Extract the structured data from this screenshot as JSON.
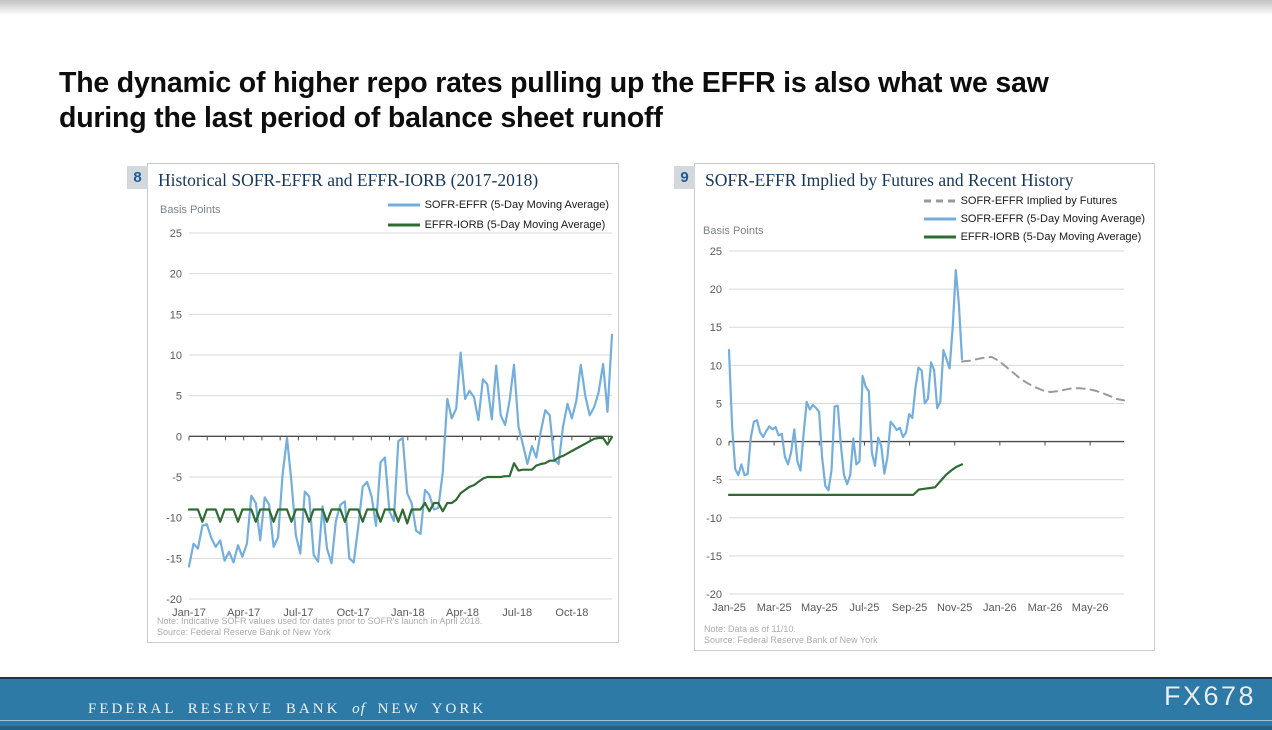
{
  "slide": {
    "title_lines": [
      "The dynamic of higher repo rates pulling up the EFFR is also what we saw",
      "during the last period of balance sheet runoff"
    ]
  },
  "watermark": "FX678",
  "footer": {
    "bank_pre": "FEDERAL RESERVE BANK",
    "bank_of": "of",
    "bank_post": "NEW YORK"
  },
  "ui": {
    "badge_bg": "#d3d8dc",
    "badge_fg": "#1f5c9e",
    "footer_bar": "#2e7aa7",
    "footer_line": "#15355c",
    "gridline": "#d9d9d9",
    "zero_line": "#4d4d4d",
    "tick_label": "#595959"
  },
  "chart_data": [
    {
      "type": "line",
      "number": "8",
      "title": "Historical SOFR-EFFR and EFFR-IORB (2017-2018)",
      "y_unit": "Basis Points",
      "ylim": [
        -20,
        25
      ],
      "yticks": [
        25,
        20,
        15,
        10,
        5,
        0,
        -5,
        -10,
        -15,
        -20
      ],
      "x_axis": {
        "labels": [
          {
            "text": "Jan-17",
            "pos": 0
          },
          {
            "text": "Apr-17",
            "pos": 12.93
          },
          {
            "text": "Jul-17",
            "pos": 25.86
          },
          {
            "text": "Oct-17",
            "pos": 38.79
          },
          {
            "text": "Jan-18",
            "pos": 51.72
          },
          {
            "text": "Apr-18",
            "pos": 64.66
          },
          {
            "text": "Jul-18",
            "pos": 77.59
          },
          {
            "text": "Oct-18",
            "pos": 90.52
          }
        ],
        "tick_positions": [
          0,
          4.31,
          8.62,
          12.93,
          17.24,
          21.55,
          25.86,
          30.17,
          34.48,
          38.79,
          43.1,
          47.41,
          51.72,
          56.03,
          60.34,
          64.66,
          68.97,
          73.28,
          77.59,
          81.9,
          86.21,
          90.52,
          94.83,
          99.14
        ]
      },
      "series": [
        {
          "name": "SOFR-EFFR (5-Day Moving Average)",
          "color": "#74aedc",
          "width": 2.2,
          "dash": null,
          "x_start": 0,
          "x_end": 100,
          "values": [
            -16,
            -13.2,
            -13.8,
            -11,
            -10.8,
            -12.5,
            -13.6,
            -12.8,
            -15.3,
            -14.2,
            -15.5,
            -13.4,
            -14.8,
            -13.2,
            -7.3,
            -8.2,
            -12.8,
            -7.5,
            -8.4,
            -13.6,
            -12.4,
            -4.8,
            -0.2,
            -5.5,
            -12.2,
            -14.4,
            -6.8,
            -7.4,
            -14.6,
            -15.4,
            -8.6,
            -13.8,
            -15.6,
            -10.4,
            -8.4,
            -8,
            -15,
            -15.5,
            -11.2,
            -6.2,
            -5.6,
            -7.4,
            -11,
            -3.2,
            -2.6,
            -9.2,
            -10.4,
            -0.6,
            -0.2,
            -7,
            -8.2,
            -11.6,
            -12,
            -6.6,
            -7.2,
            -9,
            -8.8,
            -4.4,
            4.6,
            2.2,
            3.4,
            10.3,
            4.6,
            5.6,
            4.8,
            2,
            7,
            6.4,
            2.1,
            8.7,
            2.6,
            1.4,
            4.4,
            8.8,
            1.2,
            -1,
            -3.4,
            -1.2,
            -2.6,
            0.6,
            3.2,
            2.6,
            -2.8,
            -3.4,
            1.2,
            4,
            2.2,
            4.4,
            8.8,
            5,
            2.6,
            3.6,
            5.4,
            8.9,
            3,
            12.5
          ]
        },
        {
          "name": "EFFR-IORB (5-Day Moving Average)",
          "color": "#2f6b33",
          "width": 2.2,
          "dash": null,
          "x_start": 0,
          "x_end": 100,
          "values": [
            -9,
            -9,
            -9,
            -10.5,
            -9,
            -9,
            -9,
            -10.5,
            -9,
            -9,
            -9,
            -10.5,
            -9,
            -9,
            -9,
            -10.5,
            -9,
            -9,
            -9,
            -10.5,
            -9,
            -9,
            -9,
            -10.5,
            -9,
            -9,
            -9,
            -10.5,
            -9,
            -9,
            -9,
            -10.5,
            -9,
            -9,
            -9,
            -10.5,
            -9,
            -9,
            -9,
            -10.5,
            -9,
            -9,
            -9,
            -10.5,
            -9,
            -9,
            -9,
            -10.5,
            -9,
            -10.7,
            -9,
            -9,
            -9,
            -8.2,
            -9.2,
            -8.2,
            -8.2,
            -9.2,
            -8.2,
            -8.2,
            -7.8,
            -7,
            -6.6,
            -6.2,
            -6,
            -5.6,
            -5.2,
            -5,
            -5,
            -5,
            -5,
            -4.9,
            -4.9,
            -3.3,
            -4.2,
            -4.1,
            -4.1,
            -4.1,
            -3.6,
            -3.4,
            -3.3,
            -3,
            -3,
            -2.6,
            -2.4,
            -2.1,
            -1.8,
            -1.5,
            -1.2,
            -0.9,
            -0.6,
            -0.3,
            -0.2,
            -0.2,
            -1,
            -0.1
          ]
        }
      ],
      "note": "Note: Indicative SOFR values used for dates prior to SOFR's launch in April 2018.",
      "source": "Source: Federal Reserve Bank of New York"
    },
    {
      "type": "line",
      "number": "9",
      "title": "SOFR-EFFR Implied by Futures and Recent History",
      "y_unit": "Basis Points",
      "ylim": [
        -20,
        25
      ],
      "yticks": [
        25,
        20,
        15,
        10,
        5,
        0,
        -5,
        -10,
        -15,
        -20
      ],
      "x_axis": {
        "labels": [
          {
            "text": "Jan-25",
            "pos": 0
          },
          {
            "text": "Mar-25",
            "pos": 11.43
          },
          {
            "text": "May-25",
            "pos": 22.86
          },
          {
            "text": "Jul-25",
            "pos": 34.29
          },
          {
            "text": "Sep-25",
            "pos": 45.71
          },
          {
            "text": "Nov-25",
            "pos": 57.14
          },
          {
            "text": "Jan-26",
            "pos": 68.57
          },
          {
            "text": "Mar-26",
            "pos": 80
          },
          {
            "text": "May-26",
            "pos": 91.43
          }
        ],
        "tick_positions": [
          0,
          11.43,
          22.86,
          34.29,
          45.71,
          57.14,
          68.57,
          80,
          91.43
        ]
      },
      "series": [
        {
          "name": "SOFR-EFFR Implied by Futures",
          "color": "#9a9a9a",
          "width": 2,
          "dash": "8,6",
          "x_start": 59,
          "x_end": 100,
          "values": [
            10.5,
            10.6,
            10.8,
            11,
            11.1,
            10.6,
            9.8,
            9,
            8.2,
            7.6,
            7.1,
            6.7,
            6.5,
            6.6,
            6.8,
            7,
            7,
            6.9,
            6.7,
            6.4,
            6,
            5.6,
            5.4
          ]
        },
        {
          "name": "SOFR-EFFR (5-Day Moving Average)",
          "color": "#74aedc",
          "width": 2.2,
          "dash": null,
          "x_start": 0,
          "x_end": 59,
          "values": [
            12,
            2,
            -3.6,
            -4.4,
            -3,
            -4.4,
            -4.3,
            0.5,
            2.6,
            2.8,
            1.2,
            0.6,
            1.4,
            2,
            1.6,
            1.9,
            0.8,
            1,
            -2,
            -3,
            -1.4,
            1.6,
            -2.6,
            -3.8,
            1,
            5.2,
            4.2,
            4.8,
            4.4,
            3.9,
            -2.2,
            -5.8,
            -6.4,
            -3.8,
            4.6,
            4.7,
            -0.5,
            -4.4,
            -5.6,
            -4.4,
            0.4,
            -3,
            -2.6,
            8.6,
            7.2,
            6.6,
            -1.5,
            -3.2,
            0.5,
            -0.6,
            -4.2,
            -2,
            2.6,
            2.1,
            1.5,
            1.8,
            0.6,
            1.2,
            3.6,
            3.1,
            7,
            9.7,
            9.3,
            5,
            5.6,
            10.4,
            9.4,
            4.4,
            5.2,
            12,
            10.8,
            9.6,
            15,
            22.5,
            18,
            10.8
          ]
        },
        {
          "name": "EFFR-IORB (5-Day Moving Average)",
          "color": "#2f6b33",
          "width": 2.2,
          "dash": null,
          "x_start": 0,
          "x_end": 59,
          "values": [
            -7,
            -7,
            -7,
            -7,
            -7,
            -7,
            -7,
            -7,
            -7,
            -7,
            -7,
            -7,
            -7,
            -7,
            -7,
            -7,
            -7,
            -7,
            -7,
            -7,
            -7,
            -7,
            -7,
            -7,
            -7,
            -7,
            -7,
            -7,
            -7,
            -7,
            -7,
            -7,
            -7,
            -7,
            -7,
            -6.3,
            -6.2,
            -6.1,
            -6,
            -5.2,
            -4.4,
            -3.8,
            -3.3,
            -3
          ]
        }
      ],
      "note": "Note: Data as of 11/10.",
      "source": "Source: Federal Reserve Bank of New York"
    }
  ]
}
